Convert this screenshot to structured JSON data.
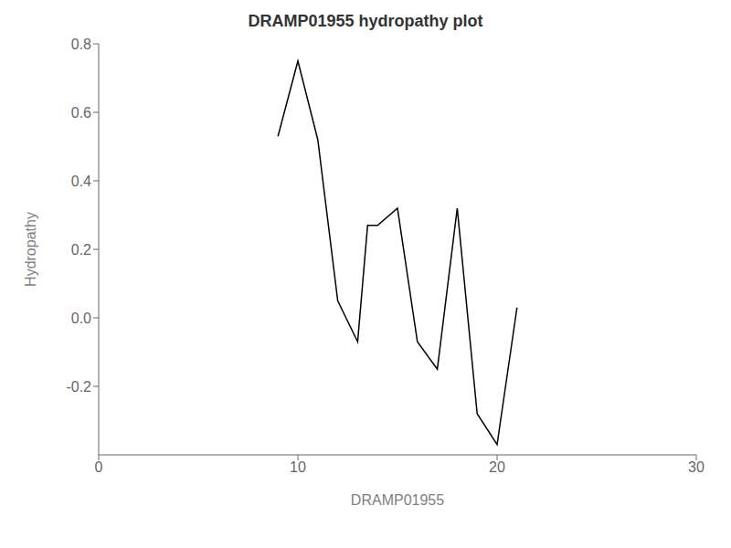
{
  "chart_data": {
    "type": "line",
    "title": "DRAMP01955 hydropathy plot",
    "x_label": "DRAMP01955",
    "y_label": "Hydropathy",
    "x": [
      9,
      10,
      11,
      12,
      13,
      13.5,
      14,
      15,
      16,
      17,
      18,
      19,
      20,
      21
    ],
    "values": [
      0.53,
      0.75,
      0.52,
      0.05,
      -0.07,
      0.27,
      0.27,
      0.32,
      -0.07,
      -0.15,
      0.32,
      -0.28,
      -0.37,
      0.03
    ],
    "color": "#000000",
    "xlim": [
      0,
      30
    ],
    "ylim": [
      -0.4,
      0.8
    ],
    "xticks": [
      0,
      10,
      20,
      30
    ],
    "yticks": [
      -0.2,
      {
        "value": 0,
        "label": "0.0"
      },
      0.2,
      0.4,
      0.6,
      0.8
    ],
    "grid": false
  }
}
